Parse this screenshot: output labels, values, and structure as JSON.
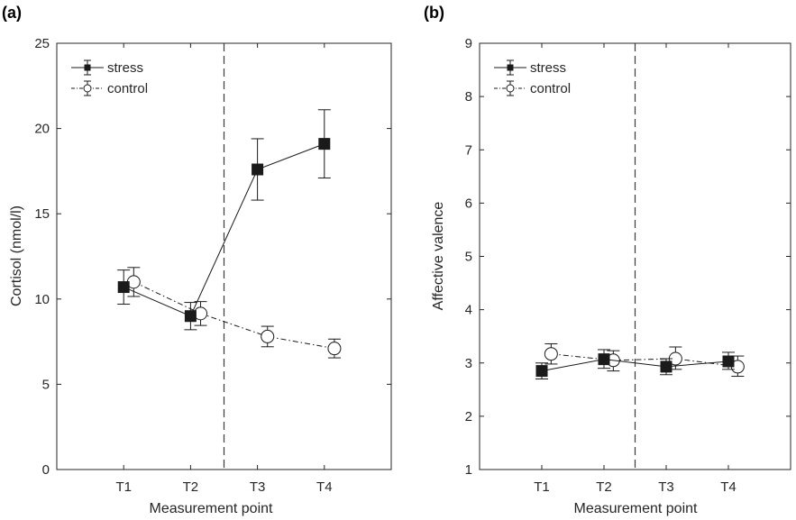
{
  "chart_data": [
    {
      "type": "line",
      "panel_label": "(a)",
      "title": "",
      "xlabel": "Measurement point",
      "ylabel": "Cortisol (nmol/l)",
      "categories": [
        "T1",
        "T2",
        "T3",
        "T4"
      ],
      "xlim": [
        0,
        5
      ],
      "ylim": [
        0,
        25
      ],
      "yticks": [
        0,
        5,
        10,
        15,
        20,
        25
      ],
      "divider_x": 2.5,
      "legend_position": "top-left",
      "grid": false,
      "series": [
        {
          "name": "stress",
          "marker": "filled-square",
          "line": "solid",
          "x": [
            1,
            2,
            3,
            4
          ],
          "values": [
            10.7,
            9.0,
            17.6,
            19.1
          ],
          "error_low": [
            9.7,
            8.2,
            15.8,
            17.1
          ],
          "error_high": [
            11.7,
            9.8,
            19.4,
            21.1
          ]
        },
        {
          "name": "control",
          "marker": "open-circle",
          "line": "dash-dot",
          "x": [
            1.15,
            2.15,
            3.15,
            4.15
          ],
          "values": [
            11.0,
            9.15,
            7.8,
            7.1
          ],
          "error_low": [
            10.15,
            8.45,
            7.2,
            6.55
          ],
          "error_high": [
            11.85,
            9.85,
            8.4,
            7.65
          ]
        }
      ]
    },
    {
      "type": "line",
      "panel_label": "(b)",
      "title": "",
      "xlabel": "Measurement point",
      "ylabel": "Affective valence",
      "categories": [
        "T1",
        "T2",
        "T3",
        "T4"
      ],
      "xlim": [
        0,
        5
      ],
      "ylim": [
        1,
        9
      ],
      "yticks": [
        1,
        2,
        3,
        4,
        5,
        6,
        7,
        8,
        9
      ],
      "divider_x": 2.5,
      "legend_position": "top-left",
      "grid": false,
      "series": [
        {
          "name": "stress",
          "marker": "filled-square",
          "line": "solid",
          "x": [
            1,
            2,
            3,
            4
          ],
          "values": [
            2.85,
            3.07,
            2.93,
            3.03
          ],
          "error_low": [
            2.7,
            2.9,
            2.78,
            2.88
          ],
          "error_high": [
            3.0,
            3.25,
            3.08,
            3.2
          ]
        },
        {
          "name": "control",
          "marker": "open-circle",
          "line": "dash-dot",
          "x": [
            1.15,
            2.15,
            3.15,
            4.15
          ],
          "values": [
            3.17,
            3.05,
            3.08,
            2.93
          ],
          "error_low": [
            2.98,
            2.85,
            2.88,
            2.75
          ],
          "error_high": [
            3.36,
            3.23,
            3.3,
            3.13
          ]
        }
      ]
    }
  ]
}
